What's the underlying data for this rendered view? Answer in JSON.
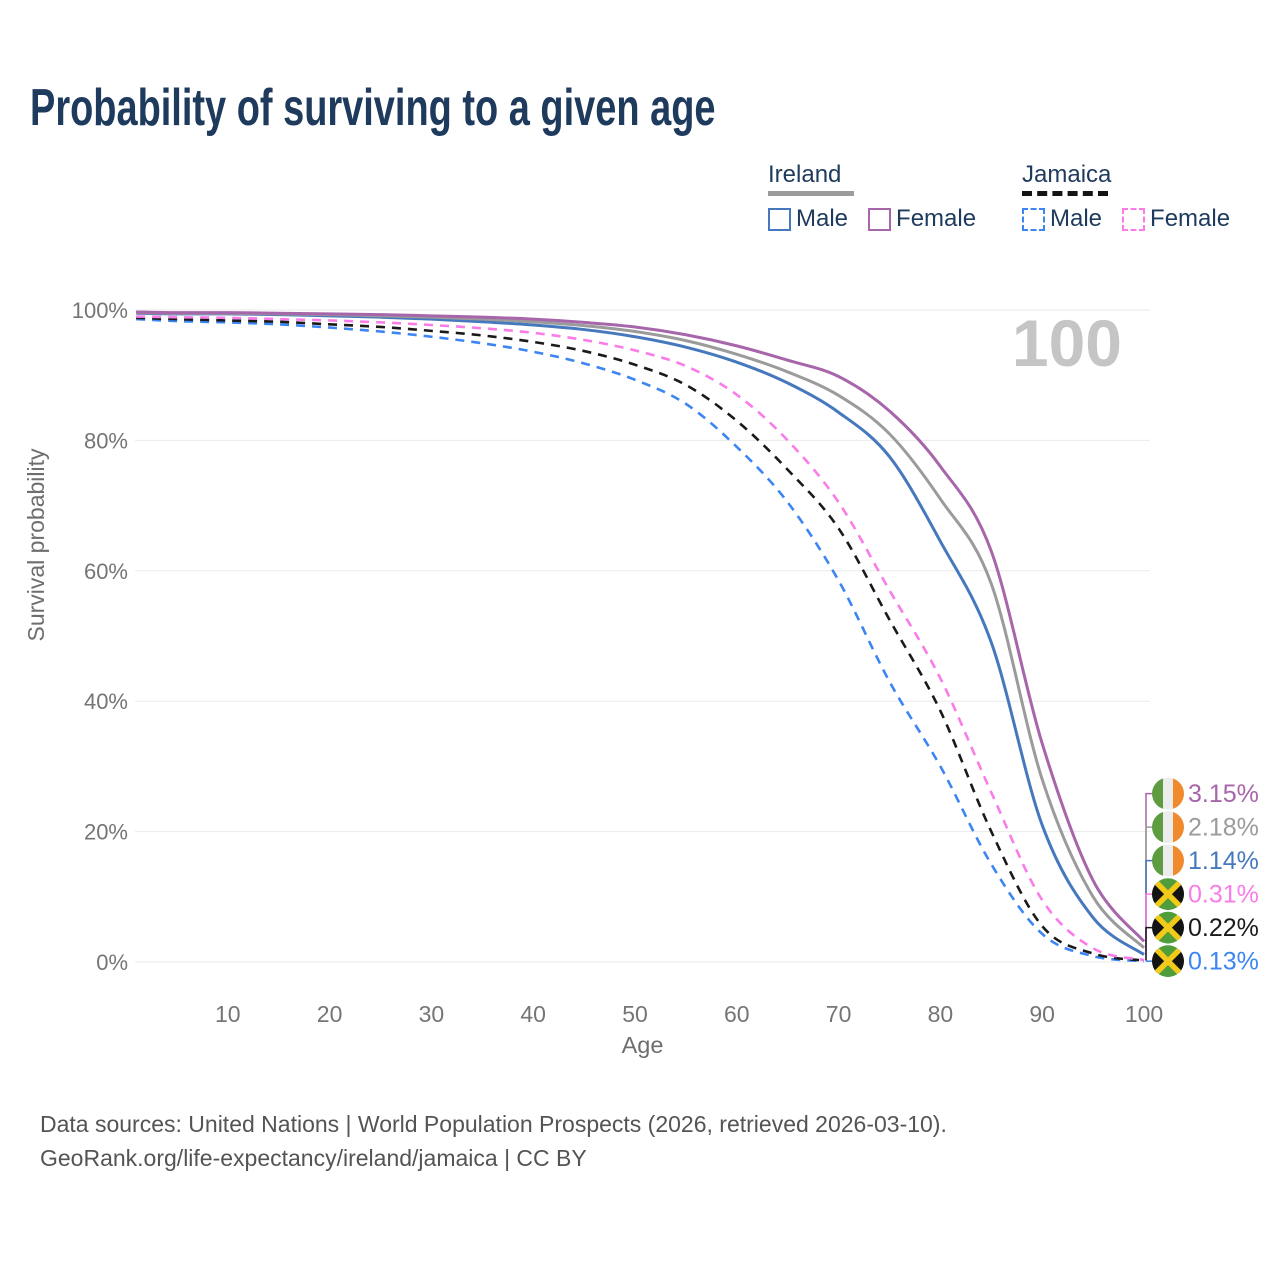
{
  "title": "Probability of surviving to a given age",
  "watermark": "100",
  "legend": {
    "groups": [
      {
        "title": "Ireland",
        "line_color": "#9b9b9b",
        "line_dashed": false,
        "items": [
          {
            "label": "Male",
            "color": "#4678bd",
            "dashed": false
          },
          {
            "label": "Female",
            "color": "#a765aa",
            "dashed": false
          }
        ]
      },
      {
        "title": "Jamaica",
        "line_color": "#141414",
        "line_dashed": true,
        "items": [
          {
            "label": "Male",
            "color": "#3c85f2",
            "dashed": true
          },
          {
            "label": "Female",
            "color": "#f97ce9",
            "dashed": true
          }
        ]
      }
    ]
  },
  "flags": {
    "ireland": {
      "green": "#5d9c40",
      "white": "#ececec",
      "orange": "#f08a2c"
    },
    "jamaica": {
      "green": "#4f9d3c",
      "black": "#141414",
      "gold": "#f2ca18"
    }
  },
  "chart_data": {
    "type": "line",
    "title": "Probability of surviving to a given age",
    "xlabel": "Age",
    "ylabel": "Survival probability",
    "xlim": [
      0,
      100
    ],
    "ylim": [
      0,
      100
    ],
    "x_ticks": [
      10,
      20,
      30,
      40,
      50,
      60,
      70,
      80,
      90,
      100
    ],
    "y_ticks": [
      "0%",
      "20%",
      "40%",
      "60%",
      "80%",
      "100%"
    ],
    "grid": "horizontal",
    "grid_color": "#eaeaea",
    "tick_color": "#757575",
    "axis_title_color": "#6e6e6e",
    "watermark_color": "#c5c5c5",
    "legend_position": "top-right",
    "ages": [
      1,
      5,
      10,
      15,
      20,
      25,
      30,
      35,
      40,
      45,
      50,
      55,
      60,
      65,
      70,
      75,
      80,
      85,
      90,
      95,
      100
    ],
    "series": [
      {
        "id": "jamaica-male",
        "name": "Jamaica Male",
        "country": "Jamaica",
        "sex": "male",
        "color": "#3c85f2",
        "dashed": true,
        "flag": "jamaica",
        "end_label": "0.13%",
        "values": [
          98.6,
          98.3,
          98.1,
          97.8,
          97.3,
          96.7,
          95.9,
          94.9,
          93.6,
          91.8,
          89.3,
          85.6,
          79.0,
          70.5,
          58.5,
          43.0,
          30.0,
          15.0,
          4.3,
          0.9,
          0.13
        ]
      },
      {
        "id": "jamaica-all",
        "name": "Jamaica (both sexes)",
        "country": "Jamaica",
        "sex": "all",
        "color": "#1a1a1a",
        "dashed": true,
        "flag": "jamaica",
        "end_label": "0.22%",
        "values": [
          98.8,
          98.6,
          98.4,
          98.2,
          97.8,
          97.4,
          96.8,
          96.1,
          95.1,
          93.7,
          91.6,
          88.5,
          83.0,
          75.5,
          66.5,
          52.5,
          38.5,
          20.0,
          5.5,
          1.3,
          0.22
        ]
      },
      {
        "id": "jamaica-female",
        "name": "Jamaica Female",
        "country": "Jamaica",
        "sex": "female",
        "color": "#f97ce9",
        "dashed": true,
        "flag": "jamaica",
        "end_label": "0.31%",
        "values": [
          99.0,
          98.9,
          98.8,
          98.6,
          98.4,
          98.1,
          97.7,
          97.2,
          96.5,
          95.4,
          93.8,
          91.4,
          87.0,
          80.0,
          70.5,
          57.0,
          43.5,
          26.0,
          9.5,
          2.1,
          0.31
        ]
      },
      {
        "id": "ireland-male",
        "name": "Ireland Male",
        "country": "Ireland",
        "sex": "male",
        "color": "#4678bd",
        "dashed": false,
        "flag": "ireland",
        "end_label": "1.14%",
        "values": [
          99.5,
          99.4,
          99.4,
          99.3,
          99.1,
          98.9,
          98.6,
          98.2,
          97.7,
          97.0,
          95.9,
          94.3,
          92.0,
          88.8,
          84.3,
          77.5,
          64.5,
          49.0,
          21.0,
          6.8,
          1.14
        ]
      },
      {
        "id": "ireland-all",
        "name": "Ireland (both sexes)",
        "country": "Ireland",
        "sex": "all",
        "color": "#9b9b9b",
        "dashed": false,
        "flag": "ireland",
        "end_label": "2.18%",
        "values": [
          99.6,
          99.5,
          99.5,
          99.4,
          99.3,
          99.1,
          98.9,
          98.6,
          98.2,
          97.6,
          96.7,
          95.3,
          93.2,
          90.5,
          86.9,
          81.0,
          71.0,
          58.0,
          28.0,
          10.0,
          2.18
        ]
      },
      {
        "id": "ireland-female",
        "name": "Ireland Female",
        "country": "Ireland",
        "sex": "female",
        "color": "#a765aa",
        "dashed": false,
        "flag": "ireland",
        "end_label": "3.15%",
        "values": [
          99.7,
          99.6,
          99.6,
          99.5,
          99.4,
          99.3,
          99.1,
          98.9,
          98.6,
          98.1,
          97.4,
          96.2,
          94.5,
          92.3,
          89.8,
          84.5,
          76.0,
          63.0,
          33.5,
          12.5,
          3.15
        ]
      }
    ]
  },
  "footer": {
    "line1": "Data sources: United Nations | World Population Prospects (2026, retrieved 2026-03-10).",
    "line2": "GeoRank.org/life-expectancy/ireland/jamaica | CC BY"
  }
}
